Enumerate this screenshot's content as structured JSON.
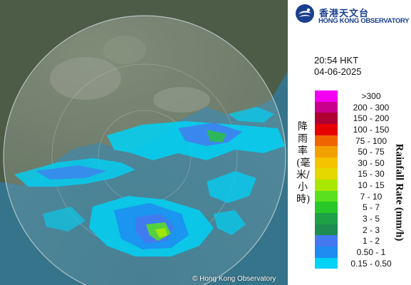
{
  "logo": {
    "name_cn": "香港天文台",
    "name_en": "HONG KONG OBSERVATORY",
    "brand_color": "#1a3f8e"
  },
  "time": "20:54 HKT",
  "date": "04-06-2025",
  "legend": {
    "title_cn": "降雨率(毫米/小時)",
    "title_en": "Rainfall Rate (mm/h)",
    "items": [
      {
        "label": ">300",
        "color": "#f200f2"
      },
      {
        "label": "200 - 300",
        "color": "#c8008c"
      },
      {
        "label": "150 - 200",
        "color": "#b00032"
      },
      {
        "label": "100 - 150",
        "color": "#e60000"
      },
      {
        "label": "75 - 100",
        "color": "#f06400"
      },
      {
        "label": "50 - 75",
        "color": "#f2a000"
      },
      {
        "label": "30 - 50",
        "color": "#f5c400"
      },
      {
        "label": "15 - 30",
        "color": "#e4d800"
      },
      {
        "label": "10 - 15",
        "color": "#a8e800"
      },
      {
        "label": "7 - 10",
        "color": "#5ae01e"
      },
      {
        "label": "5 - 7",
        "color": "#28c828"
      },
      {
        "label": "3 - 5",
        "color": "#1ea046"
      },
      {
        "label": "2 - 3",
        "color": "#1e8c50"
      },
      {
        "label": "1 - 2",
        "color": "#4678f0"
      },
      {
        "label": "0.50 - 1",
        "color": "#1e8cf0"
      },
      {
        "label": "0.15 - 0.50",
        "color": "#00d2f5"
      }
    ]
  },
  "credit": "© Hong Kong Observatory"
}
